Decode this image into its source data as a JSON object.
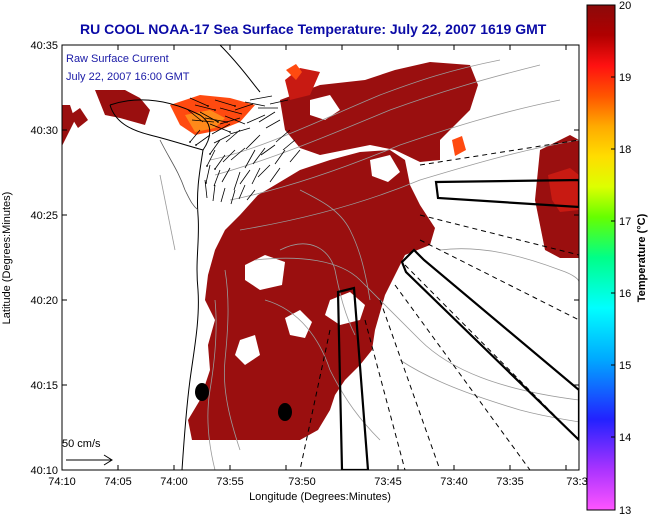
{
  "title": "RU COOL  NOAA-17  Sea Surface Temperature:  July 22, 2007 1619 GMT",
  "inset": {
    "line1": "Raw Surface Current",
    "line2": "July 22, 2007 16:00 GMT"
  },
  "scale_label": "50 cm/s",
  "x_axis": {
    "label": "Longitude (Degrees:Minutes)",
    "ticks": [
      "74:10",
      "74:05",
      "74:00",
      "73:55",
      "73:50",
      "73:45",
      "73:40",
      "73:35",
      "73:3"
    ]
  },
  "y_axis": {
    "label": "Latitude (Degrees:Minutes)",
    "ticks": [
      "40:35",
      "40:30",
      "40:25",
      "40:20",
      "40:15",
      "40:10"
    ]
  },
  "colorbar": {
    "label": "Temperature (°C)",
    "ticks": [
      "20",
      "19",
      "18",
      "17",
      "16",
      "15",
      "14",
      "13"
    ],
    "range": [
      13,
      20
    ],
    "colors": [
      "#ff55ff",
      "#aa33ff",
      "#2222ff",
      "#00aaff",
      "#00ffff",
      "#00ff88",
      "#66ff00",
      "#ddff00",
      "#ffdd00",
      "#ffaa00",
      "#ff5500",
      "#ff1111",
      "#b00000",
      "#8b0a0a"
    ]
  },
  "colors": {
    "sst_main": "#9a0f0f",
    "sst_warm": "#c81a12",
    "sst_hot": "#ff4a10",
    "sst_orange": "#ff8a1a",
    "title_blue": "#0a0aa6"
  }
}
